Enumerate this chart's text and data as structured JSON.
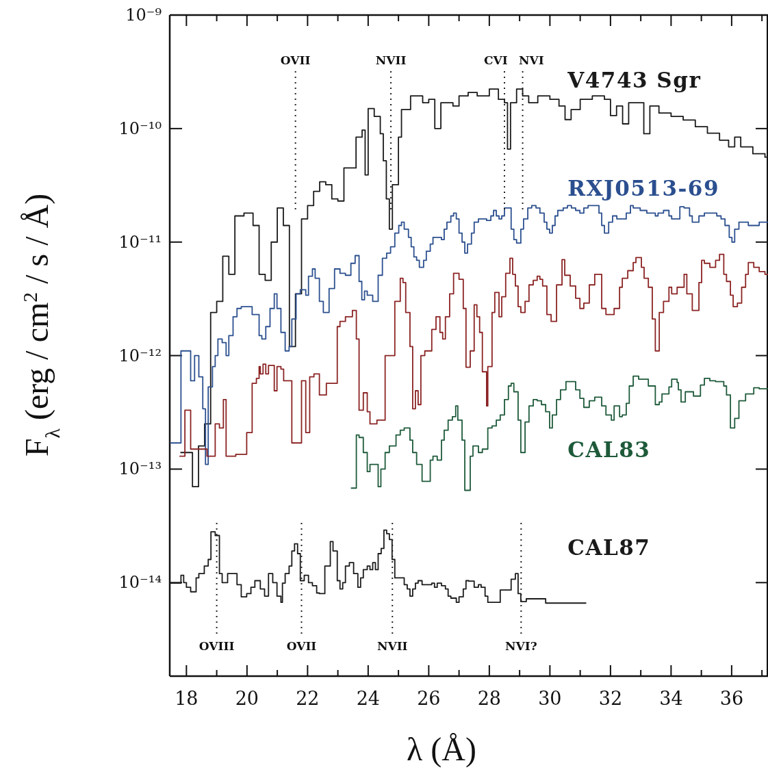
{
  "chart_data": {
    "type": "step",
    "xlabel": "λ (Å)",
    "ylabel": "F$_{λ}$ (erg / cm$^{2}$ / s / Å)",
    "log": true,
    "xlim": [
      17.45,
      37.2
    ],
    "ylim": [
      1.5e-15,
      1e-09
    ],
    "xticks": [
      18,
      {
        "value": 19,
        "label": null
      },
      20,
      {
        "value": 21,
        "label": null
      },
      22,
      {
        "value": 23,
        "label": null
      },
      24,
      {
        "value": 25,
        "label": null
      },
      26,
      {
        "value": 27,
        "label": null
      },
      28,
      {
        "value": 29,
        "label": null
      },
      30,
      {
        "value": 31,
        "label": null
      },
      32,
      {
        "value": 33,
        "label": null
      },
      34,
      {
        "value": 35,
        "label": null
      },
      36,
      {
        "value": 37,
        "label": null
      }
    ],
    "yticks": [
      {
        "value": 1e-14,
        "label": "10⁻¹⁴"
      },
      {
        "value": 1e-13,
        "label": "10⁻¹³"
      },
      {
        "value": 1e-12,
        "label": "10⁻¹²"
      },
      {
        "value": 1e-11,
        "label": "10⁻¹¹"
      },
      {
        "value": 1e-10,
        "label": "10⁻¹⁰"
      },
      {
        "value": 1e-09,
        "label": "10⁻⁹"
      }
    ],
    "series": [
      {
        "name": "V4743 Sgr",
        "color": "#1a1a1a",
        "x": [
          17.8,
          18.0,
          18.2,
          18.4,
          18.6,
          18.8,
          19.0,
          19.2,
          19.4,
          19.6,
          19.9,
          20.2,
          20.4,
          20.6,
          20.8,
          21.0,
          21.2,
          21.4,
          21.6,
          21.8,
          22.0,
          22.2,
          22.4,
          22.6,
          22.8,
          23.0,
          23.2,
          23.5,
          23.6,
          23.8,
          23.9,
          24.0,
          24.2,
          24.4,
          24.5,
          24.6,
          24.7,
          24.8,
          25.0,
          25.1,
          25.4,
          25.8,
          26.0,
          26.2,
          26.4,
          26.8,
          27.0,
          27.3,
          27.6,
          28.0,
          28.3,
          28.5,
          28.6,
          28.7,
          28.9,
          29.1,
          29.3,
          29.6,
          30.0,
          30.3,
          30.5,
          30.7,
          31.0,
          31.4,
          31.8,
          32.0,
          32.2,
          32.4,
          32.6,
          32.9,
          33.1,
          33.3,
          33.6,
          34.0,
          34.4,
          34.8,
          35.2,
          35.6,
          35.9,
          36.1,
          36.3,
          36.7,
          37.1,
          37.2
        ],
        "values": [
          1.4e-13,
          1.4e-13,
          7e-14,
          1.6e-13,
          2.5e-13,
          2.4e-12,
          3e-12,
          7.5e-12,
          5.2e-12,
          1.7e-11,
          1.8e-11,
          1.4e-11,
          5.2e-12,
          4.6e-12,
          1e-11,
          2e-11,
          1.4e-11,
          1.2e-12,
          3.5e-12,
          1.6e-11,
          2.1e-11,
          2.8e-11,
          3.4e-11,
          3.2e-11,
          2.4e-11,
          2.3e-11,
          4.5e-11,
          4.5e-11,
          8.4e-11,
          9.7e-11,
          3.9e-11,
          1.5e-10,
          1.28e-10,
          9e-11,
          5.2e-11,
          2.4e-11,
          1.3e-11,
          3.2e-11,
          8.4e-11,
          1.47e-10,
          1.94e-10,
          1.69e-10,
          1.81e-10,
          1e-10,
          1.69e-10,
          1.58e-10,
          1.94e-10,
          2.08e-10,
          1.94e-10,
          2.23e-10,
          1.81e-10,
          1.69e-10,
          6.6e-11,
          1.69e-10,
          2.23e-10,
          1.94e-10,
          1.69e-10,
          1.94e-10,
          1.81e-10,
          1.58e-10,
          1.2e-10,
          1.47e-10,
          1.81e-10,
          1.94e-10,
          1.81e-10,
          1.3e-10,
          1.58e-10,
          1.1e-10,
          1.69e-10,
          1.69e-10,
          9e-11,
          1.58e-10,
          1.37e-10,
          1.28e-10,
          1.19e-10,
          1.04e-10,
          9.1e-11,
          7.9e-11,
          6.9e-11,
          8.4e-11,
          6.9e-11,
          6e-11,
          5.6e-11,
          5.6e-11
        ]
      },
      {
        "name": "RXJ0513-69",
        "color": "#2b4f8f",
        "x": [
          17.46,
          17.82,
          18.14,
          18.27,
          18.41,
          18.54,
          18.63,
          18.72,
          18.86,
          18.95,
          19.04,
          19.18,
          19.31,
          19.4,
          19.54,
          19.67,
          19.81,
          20.17,
          20.4,
          20.49,
          20.62,
          20.76,
          20.9,
          20.99,
          21.12,
          21.26,
          21.39,
          21.48,
          21.62,
          21.76,
          21.94,
          22.03,
          22.16,
          22.25,
          22.39,
          22.52,
          22.71,
          22.89,
          23.07,
          23.25,
          23.43,
          23.57,
          23.7,
          23.79,
          23.88,
          23.97,
          24.15,
          24.33,
          24.47,
          24.61,
          24.74,
          24.88,
          25.01,
          25.1,
          25.19,
          25.33,
          25.42,
          25.51,
          25.6,
          25.69,
          25.83,
          25.92,
          26.05,
          26.14,
          26.28,
          26.42,
          26.51,
          26.6,
          26.73,
          26.82,
          26.91,
          27.0,
          27.1,
          27.19,
          27.28,
          27.41,
          27.5,
          27.64,
          27.77,
          27.91,
          28.05,
          28.14,
          28.23,
          28.32,
          28.41,
          28.5,
          28.59,
          28.72,
          28.81,
          28.9,
          29.04,
          29.13,
          29.27,
          29.4,
          29.54,
          29.67,
          29.81,
          29.9,
          29.99,
          30.08,
          30.17,
          30.26,
          30.44,
          30.58,
          30.71,
          30.85,
          30.99,
          31.12,
          31.26,
          31.44,
          31.62,
          31.71,
          31.8,
          31.94,
          32.07,
          32.21,
          32.34,
          32.52,
          32.66,
          32.75,
          32.98,
          33.2,
          33.48,
          33.57,
          33.75,
          33.93,
          34.02,
          34.29,
          34.43,
          34.61,
          34.7,
          34.92,
          35.1,
          35.51,
          35.65,
          35.78,
          35.92,
          36.01,
          36.1,
          36.24,
          36.33,
          36.55,
          36.73,
          36.91,
          37.2
        ],
        "values": [
          1.7e-13,
          1.1e-12,
          6e-13,
          1e-12,
          6.5e-13,
          3.4e-13,
          1.1e-13,
          5.3e-13,
          8e-13,
          1e-12,
          1.4e-12,
          1.3e-12,
          1e-12,
          1.5e-12,
          2.2e-12,
          2.6e-12,
          2.7e-12,
          2.3e-12,
          1.5e-12,
          1.4e-12,
          1.8e-12,
          2.6e-12,
          3.5e-12,
          2.6e-12,
          1.6e-12,
          1.1e-12,
          1.2e-12,
          2.1e-12,
          3.5e-12,
          3.8e-12,
          3.4e-12,
          5e-12,
          5.8e-12,
          4.8e-12,
          3e-12,
          2.4e-12,
          3.9e-12,
          5.8e-12,
          5.3e-12,
          5.1e-12,
          6.5e-12,
          7.6e-12,
          4.5e-12,
          3.1e-12,
          3.7e-12,
          3.4e-12,
          3e-12,
          5.1e-12,
          7.2e-12,
          8e-12,
          9.1e-12,
          1.2e-11,
          1.4e-11,
          1.5e-11,
          1.3e-11,
          1.1e-11,
          9.1e-12,
          7.4e-12,
          6.9e-12,
          6e-12,
          6.9e-12,
          8.3e-12,
          9.6e-12,
          1.1e-11,
          1.1e-11,
          1.05e-11,
          1.3e-11,
          1.5e-11,
          1.7e-11,
          1.8e-11,
          1.6e-11,
          1.2e-11,
          1e-11,
          8e-12,
          9.6e-12,
          1.2e-11,
          1.5e-11,
          1.6e-11,
          1.6e-11,
          1.55e-11,
          1.7e-11,
          1.9e-11,
          1.7e-11,
          1.6e-11,
          1.7e-11,
          2e-11,
          2e-11,
          1.3e-11,
          1.05e-11,
          9.8e-12,
          1.3e-11,
          1.6e-11,
          2e-11,
          2.1e-11,
          2e-11,
          1.8e-11,
          1.5e-11,
          1.3e-11,
          1.2e-11,
          1.4e-11,
          1.7e-11,
          1.9e-11,
          2e-11,
          2.1e-11,
          2e-11,
          1.9e-11,
          1.8e-11,
          2e-11,
          2.1e-11,
          2.1e-11,
          1.8e-11,
          1.4e-11,
          1.2e-11,
          1.5e-11,
          1.7e-11,
          1.6e-11,
          1.6e-11,
          1.8e-11,
          2.1e-11,
          2e-11,
          1.9e-11,
          1.8e-11,
          1.7e-11,
          1.8e-11,
          1.9e-11,
          1.7e-11,
          1.6e-11,
          2.05e-11,
          2e-11,
          1.7e-11,
          1.5e-11,
          1.7e-11,
          1.8e-11,
          1.7e-11,
          1.6e-11,
          1.4e-11,
          1.1e-11,
          1e-11,
          1.3e-11,
          1.5e-11,
          1.5e-11,
          1.4e-11,
          1.4e-11,
          1.5e-11,
          1.5e-11
        ]
      },
      {
        "color": "#8b2323",
        "x": [
          17.77,
          17.95,
          18.14,
          18.68,
          18.95,
          19.09,
          19.22,
          19.31,
          19.63,
          19.99,
          20.17,
          20.31,
          20.4,
          20.44,
          20.53,
          20.62,
          20.71,
          20.9,
          20.99,
          21.12,
          21.21,
          21.48,
          21.8,
          21.94,
          22.07,
          22.21,
          22.39,
          22.62,
          22.98,
          23.07,
          23.25,
          23.48,
          23.61,
          23.7,
          23.84,
          23.97,
          24.06,
          24.29,
          24.56,
          24.7,
          24.88,
          25.06,
          25.15,
          25.24,
          25.38,
          25.47,
          25.56,
          25.65,
          25.74,
          25.87,
          26.1,
          26.24,
          26.37,
          26.46,
          26.55,
          26.69,
          26.82,
          27.0,
          27.14,
          27.23,
          27.37,
          27.5,
          27.59,
          27.68,
          27.77,
          27.91,
          27.95,
          28.09,
          28.18,
          28.32,
          28.41,
          28.54,
          28.68,
          28.77,
          28.86,
          28.95,
          29.04,
          29.18,
          29.31,
          29.45,
          29.58,
          29.67,
          29.76,
          29.9,
          30.04,
          30.22,
          30.4,
          30.49,
          30.67,
          30.85,
          30.99,
          31.12,
          31.3,
          31.48,
          31.71,
          31.85,
          32.12,
          32.3,
          32.39,
          32.57,
          32.75,
          32.84,
          33.02,
          33.11,
          33.25,
          33.38,
          33.48,
          33.61,
          33.75,
          33.93,
          34.02,
          34.2,
          34.43,
          34.52,
          34.7,
          34.92,
          35.01,
          35.1,
          35.28,
          35.47,
          35.6,
          35.74,
          35.83,
          35.96,
          36.05,
          36.19,
          36.33,
          36.46,
          36.55,
          36.73,
          36.91,
          37.1,
          37.2
        ],
        "values": [
          1.3e-13,
          3.3e-13,
          1.5e-13,
          1.3e-13,
          2.5e-13,
          2.3e-13,
          4.1e-13,
          1.3e-13,
          1.35e-13,
          2.1e-13,
          5.7e-13,
          6.3e-13,
          8e-13,
          6.9e-13,
          8.4e-13,
          6.9e-13,
          8.2e-13,
          4.9e-13,
          8e-13,
          7.6e-13,
          6e-13,
          1.7e-13,
          6e-13,
          2.1e-13,
          6.5e-13,
          6.9e-13,
          4.5e-13,
          5.7e-13,
          1.8e-12,
          2e-12,
          2.2e-12,
          2.5e-12,
          1.4e-12,
          3.3e-13,
          4.7e-13,
          3.2e-13,
          2.5e-13,
          2.7e-13,
          1e-12,
          1e-12,
          3e-12,
          4.8e-12,
          4.4e-12,
          2.4e-12,
          1.2e-12,
          3.4e-13,
          4.9e-13,
          3.7e-13,
          1e-12,
          1.1e-12,
          1.7e-12,
          2.2e-12,
          1.6e-12,
          1.4e-12,
          2.2e-12,
          3.5e-12,
          5.3e-12,
          4.7e-12,
          2.6e-12,
          7.9e-13,
          1.1e-12,
          2.8e-12,
          2.2e-12,
          1.6e-12,
          7.2e-13,
          3.6e-13,
          8e-13,
          2.4e-12,
          3.6e-12,
          2.2e-12,
          3.3e-12,
          5.3e-12,
          7.2e-12,
          5.2e-12,
          4.1e-12,
          2.7e-12,
          2.4e-12,
          3e-12,
          4.2e-12,
          4.6e-12,
          5e-12,
          4.7e-12,
          4.1e-12,
          2.3e-12,
          2e-12,
          4.2e-12,
          7e-12,
          5.1e-12,
          4.1e-12,
          3.2e-12,
          2.6e-12,
          2.9e-12,
          4.2e-12,
          5.2e-12,
          2.6e-12,
          2.3e-12,
          2.6e-12,
          4e-12,
          4.8e-12,
          5.6e-12,
          6.6e-12,
          7.3e-12,
          6e-12,
          4.8e-12,
          4e-12,
          2.1e-12,
          1.1e-12,
          2.4e-12,
          3e-12,
          4e-12,
          3.5e-12,
          4e-12,
          5.2e-12,
          3.5e-12,
          2.5e-12,
          4.4e-12,
          6.9e-12,
          6.5e-12,
          6e-12,
          6.9e-12,
          7.8e-12,
          5.2e-12,
          4.5e-12,
          3.4e-12,
          2.7e-12,
          2.9e-12,
          4e-12,
          5.2e-12,
          6.6e-12,
          6e-12,
          5.5e-12,
          5.2e-12,
          5.2e-12
        ]
      },
      {
        "name": "CAL83",
        "color": "#1e5a3a",
        "x": [
          23.43,
          23.61,
          23.7,
          23.84,
          23.97,
          24.06,
          24.33,
          24.42,
          24.56,
          24.7,
          24.92,
          25.06,
          25.19,
          25.38,
          25.47,
          25.6,
          25.78,
          26.05,
          26.14,
          26.28,
          26.42,
          26.51,
          26.64,
          26.78,
          26.89,
          26.96,
          27.1,
          27.19,
          27.37,
          27.46,
          27.64,
          27.77,
          27.95,
          28.09,
          28.23,
          28.36,
          28.5,
          28.63,
          28.72,
          28.81,
          28.95,
          29.04,
          29.18,
          29.31,
          29.45,
          29.58,
          29.72,
          29.86,
          29.99,
          30.08,
          30.22,
          30.35,
          30.53,
          30.85,
          30.99,
          31.12,
          31.3,
          31.48,
          31.71,
          31.85,
          32.03,
          32.12,
          32.3,
          32.39,
          32.52,
          32.62,
          32.75,
          32.93,
          33.11,
          33.25,
          33.48,
          33.61,
          33.7,
          33.93,
          34.02,
          34.2,
          34.24,
          34.33,
          34.47,
          34.74,
          34.97,
          35.1,
          35.28,
          35.47,
          35.74,
          35.83,
          35.96,
          36.1,
          36.24,
          36.46,
          36.55,
          36.73,
          36.91,
          37.2
        ],
        "values": [
          6.8e-14,
          2e-13,
          1.9e-13,
          1.4e-13,
          9.5e-14,
          1.1e-13,
          7e-14,
          1e-13,
          1.4e-13,
          1.6e-13,
          2e-13,
          2.2e-13,
          2.3e-13,
          1.8e-13,
          1.4e-13,
          1.1e-13,
          7.8e-14,
          1.2e-13,
          1.3e-13,
          1.2e-13,
          1.8e-13,
          2.2e-13,
          2.7e-13,
          2.9e-13,
          3.6e-13,
          2.7e-13,
          1.8e-13,
          6.5e-14,
          1.3e-13,
          1.6e-13,
          1.4e-13,
          1.5e-13,
          2.3e-13,
          2.4e-13,
          2.7e-13,
          3e-13,
          4.1e-13,
          5.4e-13,
          5.7e-13,
          4.8e-13,
          2.7e-13,
          1.4e-13,
          2.6e-13,
          3.6e-13,
          4.1e-13,
          4e-13,
          3.7e-13,
          3.2e-13,
          2.3e-13,
          3e-13,
          4.1e-13,
          5e-13,
          5.9e-13,
          5e-13,
          4.2e-13,
          3.5e-13,
          4e-13,
          4.3e-13,
          3.6e-13,
          3e-13,
          2.7e-13,
          3.6e-13,
          2.9e-13,
          3e-13,
          3.8e-13,
          5.4e-13,
          6.6e-13,
          6.2e-13,
          6.2e-13,
          5.4e-13,
          3.7e-13,
          3.9e-13,
          4.6e-13,
          5.3e-13,
          6.2e-13,
          5.8e-13,
          5e-13,
          3.9e-13,
          4.8e-13,
          4.4e-13,
          5.5e-13,
          6.3e-13,
          6e-13,
          5.9e-13,
          5.4e-13,
          4.5e-13,
          2.3e-13,
          2.8e-13,
          4e-13,
          4.6e-13,
          4.6e-13,
          5.2e-13,
          5.1e-13,
          5.1e-13
        ]
      },
      {
        "name": "CAL87",
        "color": "#1a1a1a",
        "x": [
          17.46,
          17.82,
          17.91,
          18.0,
          18.14,
          18.32,
          18.41,
          18.59,
          18.72,
          18.81,
          18.95,
          19.09,
          19.18,
          19.36,
          19.67,
          19.81,
          19.99,
          20.13,
          20.26,
          20.44,
          20.58,
          20.71,
          20.85,
          20.99,
          21.12,
          21.17,
          21.26,
          21.39,
          21.48,
          21.57,
          21.67,
          21.76,
          21.89,
          22.03,
          22.16,
          22.3,
          22.39,
          22.57,
          22.75,
          22.84,
          22.98,
          23.07,
          23.16,
          23.25,
          23.38,
          23.52,
          23.66,
          23.75,
          23.84,
          23.97,
          24.06,
          24.15,
          24.24,
          24.33,
          24.43,
          24.52,
          24.61,
          24.7,
          24.79,
          24.88,
          24.97,
          25.19,
          25.29,
          25.38,
          25.47,
          25.56,
          25.65,
          25.78,
          26.1,
          26.19,
          26.28,
          26.42,
          26.55,
          26.64,
          26.73,
          26.91,
          27.0,
          27.14,
          27.23,
          27.32,
          27.5,
          27.64,
          27.73,
          27.86,
          27.95,
          28.36,
          28.72,
          28.86,
          28.95,
          29.04,
          29.22,
          29.86,
          31.2
        ],
        "values": [
          9.9e-15,
          1.16e-14,
          1e-14,
          9.1e-15,
          8.3e-15,
          1.1e-14,
          1.2e-14,
          1.4e-14,
          1.6e-14,
          2.8e-14,
          2.6e-14,
          1.2e-14,
          1e-14,
          1.2e-14,
          9.6e-15,
          7.5e-15,
          8e-15,
          9.1e-15,
          1.04e-14,
          8.8e-15,
          7.6e-15,
          1.2e-14,
          1e-14,
          7.6e-15,
          6.7e-15,
          9.9e-15,
          1.2e-14,
          1.4e-14,
          1.9e-14,
          2.2e-14,
          1.8e-14,
          1.04e-14,
          1.16e-14,
          1e-14,
          9.4e-15,
          8.1e-15,
          8e-15,
          1.4e-14,
          2.3e-14,
          1.9e-14,
          1.04e-14,
          8.8e-15,
          1e-14,
          1.4e-14,
          1.5e-14,
          1.2e-14,
          9.1e-15,
          1.1e-14,
          1.3e-14,
          1.4e-14,
          1.3e-14,
          1.5e-14,
          1.3e-14,
          1.8e-14,
          2e-14,
          2.9e-14,
          2.7e-14,
          2.4e-14,
          1.6e-14,
          1.1e-14,
          1.1e-14,
          9.6e-15,
          8.8e-15,
          7.6e-15,
          8.8e-15,
          9.9e-15,
          1.04e-14,
          9.6e-15,
          9.9e-15,
          9.1e-15,
          9.9e-15,
          9.4e-15,
          8.8e-15,
          7.6e-15,
          7.3e-15,
          6.7e-15,
          7.5e-15,
          8.8e-15,
          1.04e-14,
          1.03e-14,
          9.1e-15,
          9.6e-15,
          9.1e-15,
          7.6e-15,
          6.7e-15,
          8.6e-15,
          1.07e-14,
          1.2e-14,
          8e-15,
          6.8e-15,
          7.2e-15,
          6.6e-15,
          6.6e-15
        ]
      }
    ],
    "ref_lines": [
      {
        "axis": "x",
        "value": 21.6,
        "label": "OVII",
        "line_style": "dotted"
      },
      {
        "axis": "x",
        "value": 24.75,
        "label": "NVII",
        "line_style": "dotted"
      },
      {
        "axis": "x",
        "value": 28.5,
        "label": "CVI",
        "line_style": "dotted"
      },
      {
        "axis": "x",
        "value": 29.1,
        "label": "NVI",
        "line_style": "dotted"
      },
      {
        "axis": "x",
        "value": 19.0,
        "label": "OVIII",
        "line_style": "dotted"
      },
      {
        "axis": "x",
        "value": 21.8,
        "label": "OVII",
        "line_style": "dotted"
      },
      {
        "axis": "x",
        "value": 24.8,
        "label": "NVII",
        "line_style": "dotted"
      },
      {
        "axis": "x",
        "value": 29.05,
        "label": "NVI?",
        "line_style": "dotted"
      }
    ]
  }
}
